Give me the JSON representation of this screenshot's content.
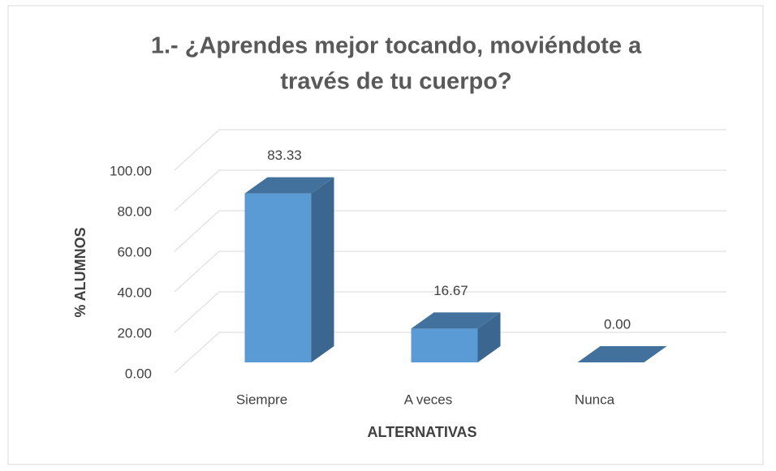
{
  "chart_data": {
    "type": "bar3d",
    "title": [
      "1.- ¿Aprendes mejor tocando, moviéndote a",
      "través de tu cuerpo?"
    ],
    "x_label": "ALTERNATIVAS",
    "y_label": "% ALUMNOS",
    "categories": [
      "Siempre",
      "A veces",
      "Nunca"
    ],
    "values": [
      83.33,
      16.67,
      0
    ],
    "value_labels": [
      "83.33",
      "16.67",
      "0.00"
    ],
    "color": "#5b9bd5",
    "ylim": [
      0,
      100
    ],
    "yticks": [
      {
        "value": 0,
        "label": "0.00"
      },
      {
        "value": 20,
        "label": "20.00"
      },
      {
        "value": 40,
        "label": "40.00"
      },
      {
        "value": 60,
        "label": "60.00"
      },
      {
        "value": 80,
        "label": "80.00"
      },
      {
        "value": 100,
        "label": "100.00"
      }
    ],
    "grid": true
  }
}
